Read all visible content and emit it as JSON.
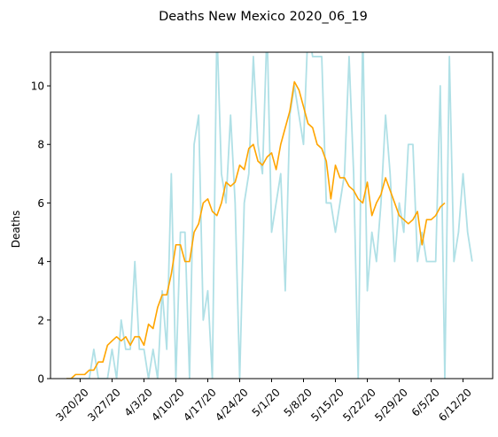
{
  "chart_data": {
    "type": "line",
    "title": "Deaths New Mexico 2020_06_19",
    "xlabel": "",
    "ylabel": "Deaths",
    "x_start": "3/17/20",
    "ylim": [
      0,
      11.15
    ],
    "yticks": [
      0,
      2,
      4,
      6,
      8,
      10
    ],
    "xticks": [
      {
        "date": "3/20/20",
        "label": "3/20/20"
      },
      {
        "date": "3/27/20",
        "label": "3/27/20"
      },
      {
        "date": "4/3/20",
        "label": "4/3/20"
      },
      {
        "date": "4/10/20",
        "label": "4/10/20"
      },
      {
        "date": "4/17/20",
        "label": "4/17/20"
      },
      {
        "date": "4/24/20",
        "label": "4/24/20"
      },
      {
        "date": "5/1/20",
        "label": "5/1/20"
      },
      {
        "date": "5/8/20",
        "label": "5/8/20"
      },
      {
        "date": "5/15/20",
        "label": "5/15/20"
      },
      {
        "date": "5/22/20",
        "label": "5/22/20"
      },
      {
        "date": "5/29/20",
        "label": "5/29/20"
      },
      {
        "date": "6/5/20",
        "label": "6/5/20"
      },
      {
        "date": "6/12/20",
        "label": "6/12/20"
      }
    ],
    "grid": false,
    "series": [
      {
        "color": "#b0e0e6",
        "values": [
          0,
          0,
          0,
          0,
          0,
          0,
          1,
          0,
          0,
          0,
          1,
          0,
          2,
          1,
          1,
          4,
          1,
          1,
          0,
          1,
          0,
          3,
          1,
          7,
          0,
          5,
          5,
          0,
          8,
          9,
          2,
          3,
          0,
          12,
          7,
          6,
          9,
          6,
          0,
          6,
          7,
          11,
          8,
          7,
          12,
          5,
          6,
          7,
          3,
          9,
          10,
          9,
          8,
          12,
          11,
          11,
          11,
          6,
          6,
          5,
          6,
          7,
          11,
          7,
          0,
          12,
          3,
          5,
          4,
          6,
          9,
          7,
          4,
          6,
          5,
          8,
          8,
          4,
          5,
          4,
          4,
          4,
          10,
          0,
          11,
          4,
          5,
          7,
          5,
          4
        ]
      },
      {
        "color": "#ffa500",
        "values": [
          0,
          0,
          0.14,
          0.14,
          0.14,
          0.29,
          0.29,
          0.57,
          0.57,
          1.14,
          1.29,
          1.43,
          1.29,
          1.43,
          1.14,
          1.43,
          1.43,
          1.14,
          1.86,
          1.71,
          2.43,
          2.86,
          2.86,
          3.57,
          4.57,
          4.57,
          4.0,
          4.0,
          5.0,
          5.29,
          6.0,
          6.14,
          5.71,
          5.57,
          6.0,
          6.71,
          6.57,
          6.71,
          7.29,
          7.14,
          7.86,
          8.0,
          7.43,
          7.29,
          7.57,
          7.71,
          7.14,
          8.0,
          8.57,
          9.14,
          10.14,
          9.86,
          9.29,
          8.71,
          8.57,
          8.0,
          7.86,
          7.43,
          6.14,
          7.29,
          6.86,
          6.86,
          6.57,
          6.43,
          6.14,
          6.0,
          6.71,
          5.57,
          6.0,
          6.29,
          6.86,
          6.43,
          6.0,
          5.57,
          5.43,
          5.29,
          5.43,
          5.71,
          4.57,
          5.43,
          5.43,
          5.57,
          5.86,
          6.0
        ]
      }
    ]
  }
}
